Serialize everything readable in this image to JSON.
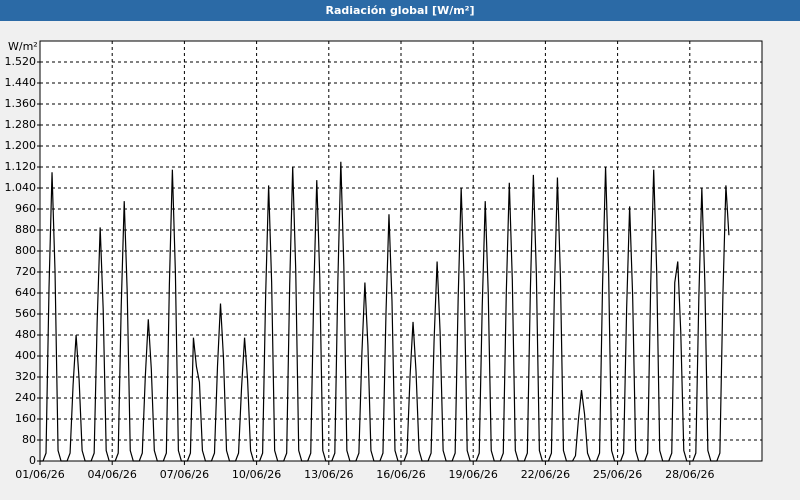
{
  "chart_data": {
    "type": "line",
    "title": "Radiación global [W/m²]",
    "y_label": "W/m²",
    "categories": [
      "01/06/26",
      null,
      null,
      null,
      null,
      null,
      null,
      null,
      null,
      null,
      null,
      null,
      null,
      null,
      null,
      null,
      null,
      null,
      null,
      null,
      null,
      null,
      null,
      null,
      "04/06/26",
      null,
      null,
      null,
      null,
      null,
      null,
      null,
      null,
      null,
      null,
      null,
      null,
      null,
      null,
      null,
      null,
      null,
      null,
      null,
      null,
      null,
      null,
      null,
      "07/06/26",
      null,
      null,
      null,
      null,
      null,
      null,
      null,
      null,
      null,
      null,
      null,
      null,
      null,
      null,
      null,
      null,
      null,
      null,
      null,
      null,
      null,
      null,
      null,
      "10/06/26",
      null,
      null,
      null,
      null,
      null,
      null,
      null,
      null,
      null,
      null,
      null,
      null,
      null,
      null,
      null,
      null,
      null,
      null,
      null,
      null,
      null,
      null,
      null,
      "13/06/26",
      null,
      null,
      null,
      null,
      null,
      null,
      null,
      null,
      null,
      null,
      null,
      null,
      null,
      null,
      null,
      null,
      null,
      null,
      null,
      null,
      null,
      null,
      null,
      "16/06/26",
      null,
      null,
      null,
      null,
      null,
      null,
      null,
      null,
      null,
      null,
      null,
      null,
      null,
      null,
      null,
      null,
      null,
      null,
      null,
      null,
      null,
      null,
      null,
      "19/06/26",
      null,
      null,
      null,
      null,
      null,
      null,
      null,
      null,
      null,
      null,
      null,
      null,
      null,
      null,
      null,
      null,
      null,
      null,
      null,
      null,
      null,
      null,
      null,
      "22/06/26",
      null,
      null,
      null,
      null,
      null,
      null,
      null,
      null,
      null,
      null,
      null,
      null,
      null,
      null,
      null,
      null,
      null,
      null,
      null,
      null,
      null,
      null,
      null,
      "25/06/26",
      null,
      null,
      null,
      null,
      null,
      null,
      null,
      null,
      null,
      null,
      null,
      null,
      null,
      null,
      null,
      null,
      null,
      null,
      null,
      null,
      null,
      null,
      null,
      "28/06/26",
      null,
      null,
      null,
      null,
      null,
      null,
      null,
      null,
      null,
      null,
      null,
      null,
      null
    ],
    "series": [
      {
        "name": "Radiación global",
        "color": "#000000",
        "values": [
          0,
          0,
          30,
          660,
          1100,
          720,
          40,
          0,
          0,
          0,
          30,
          290,
          480,
          310,
          40,
          0,
          0,
          0,
          30,
          530,
          890,
          580,
          40,
          0,
          0,
          0,
          30,
          590,
          990,
          640,
          40,
          0,
          0,
          0,
          30,
          320,
          540,
          350,
          40,
          0,
          0,
          0,
          30,
          670,
          1110,
          720,
          40,
          0,
          0,
          0,
          30,
          470,
          360,
          300,
          40,
          0,
          0,
          0,
          30,
          360,
          600,
          390,
          40,
          0,
          0,
          0,
          30,
          280,
          470,
          310,
          40,
          0,
          0,
          0,
          30,
          630,
          1050,
          680,
          40,
          0,
          0,
          0,
          30,
          670,
          1120,
          730,
          40,
          0,
          0,
          0,
          30,
          640,
          1070,
          700,
          40,
          0,
          0,
          0,
          30,
          680,
          1140,
          740,
          40,
          0,
          0,
          0,
          30,
          410,
          680,
          440,
          40,
          0,
          0,
          0,
          30,
          560,
          940,
          610,
          40,
          0,
          0,
          0,
          30,
          320,
          530,
          340,
          40,
          0,
          0,
          0,
          30,
          460,
          760,
          490,
          40,
          0,
          0,
          0,
          30,
          620,
          1040,
          680,
          40,
          0,
          0,
          0,
          30,
          590,
          990,
          640,
          40,
          0,
          0,
          0,
          30,
          640,
          1060,
          690,
          40,
          0,
          0,
          0,
          30,
          650,
          1090,
          710,
          40,
          0,
          0,
          0,
          30,
          650,
          1080,
          700,
          40,
          0,
          0,
          0,
          20,
          160,
          270,
          180,
          30,
          0,
          0,
          0,
          30,
          670,
          1120,
          730,
          40,
          0,
          0,
          0,
          30,
          580,
          970,
          630,
          40,
          0,
          0,
          0,
          30,
          670,
          1110,
          720,
          40,
          0,
          0,
          0,
          30,
          680,
          760,
          490,
          40,
          0,
          0,
          0,
          30,
          620,
          1040,
          680,
          40,
          0,
          0,
          0,
          30,
          630,
          1050,
          860
        ]
      }
    ],
    "ylim": [
      0,
      1600
    ],
    "yticks": [
      0,
      80,
      160,
      240,
      320,
      400,
      480,
      560,
      640,
      720,
      800,
      880,
      960,
      {
        "value": 1040,
        "label": "1.040"
      },
      {
        "value": 1120,
        "label": "1.120"
      },
      {
        "value": 1200,
        "label": "1.200"
      },
      {
        "value": 1280,
        "label": "1.280"
      },
      {
        "value": 1360,
        "label": "1.360"
      },
      {
        "value": 1440,
        "label": "1.440"
      },
      {
        "value": 1520,
        "label": "1.520"
      }
    ],
    "grid": true
  }
}
